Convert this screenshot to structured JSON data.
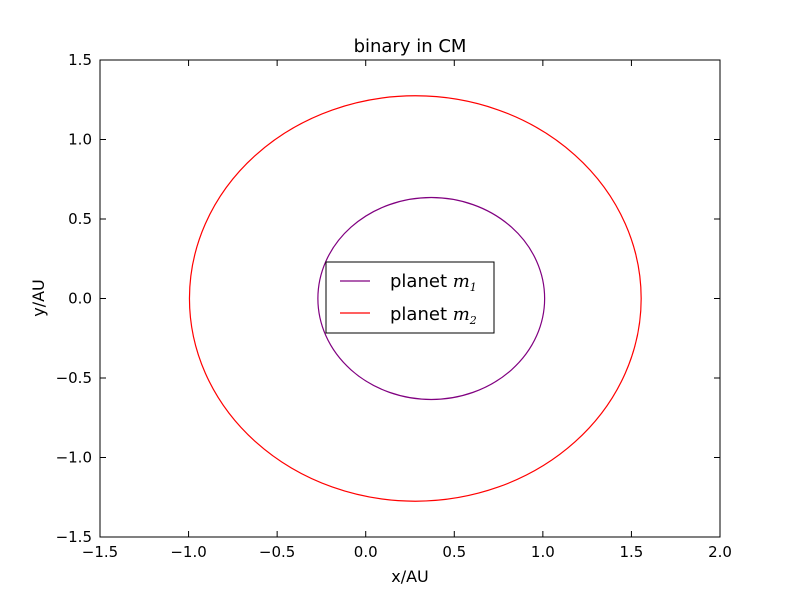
{
  "chart_data": {
    "type": "line",
    "title": "binary in CM",
    "xlabel": "x/AU",
    "ylabel": "y/AU",
    "xlim": [
      -1.5,
      2.0
    ],
    "ylim": [
      -1.5,
      1.5
    ],
    "xticks": [
      -1.5,
      -1.0,
      -0.5,
      0.0,
      0.5,
      1.0,
      1.5,
      2.0
    ],
    "yticks": [
      -1.5,
      -1.0,
      -0.5,
      0.0,
      0.5,
      1.0,
      1.5
    ],
    "xtick_labels": [
      "−1.5",
      "−1.0",
      "−0.5",
      "0.0",
      "0.5",
      "1.0",
      "1.5",
      "2.0"
    ],
    "ytick_labels": [
      "−1.5",
      "−1.0",
      "−0.5",
      "0.0",
      "0.5",
      "1.0",
      "1.5"
    ],
    "grid": false,
    "legend_position": "center",
    "series": [
      {
        "name": "planet m1",
        "legend_text": "planet ",
        "legend_math": "m",
        "legend_sub": "1",
        "color": "#800080",
        "shape": "ellipse",
        "center": [
          0.37,
          0.0
        ],
        "radii": [
          0.64,
          0.635
        ]
      },
      {
        "name": "planet m2",
        "legend_text": "planet ",
        "legend_math": "m",
        "legend_sub": "2",
        "color": "#ff0000",
        "shape": "ellipse",
        "center": [
          0.28,
          0.0
        ],
        "radii": [
          1.275,
          1.275
        ]
      }
    ]
  }
}
